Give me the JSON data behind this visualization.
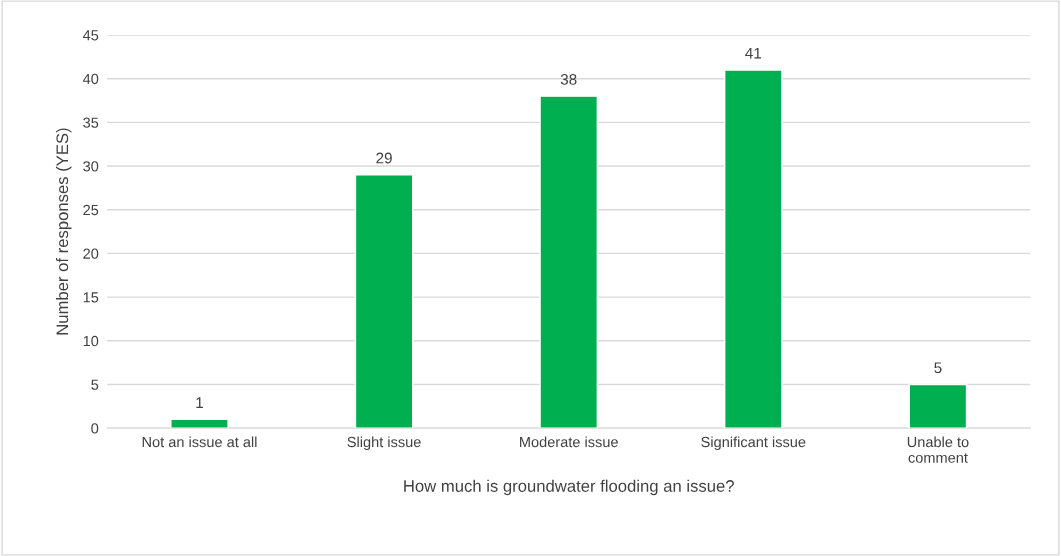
{
  "chart_data": {
    "type": "bar",
    "xlabel": "How much is groundwater flooding an issue?",
    "ylabel": "Number of responses (YES)",
    "categories": [
      "Not an issue at all",
      "Slight issue",
      "Moderate issue",
      "Significant issue",
      "Unable to\ncomment"
    ],
    "values": [
      1,
      29,
      38,
      41,
      5
    ],
    "color": "#00b050",
    "ylim": [
      0,
      45
    ],
    "yticks": [
      0,
      5,
      10,
      15,
      20,
      25,
      30,
      35,
      40,
      45
    ],
    "grid": "y",
    "data_labels": true,
    "legend": false
  }
}
